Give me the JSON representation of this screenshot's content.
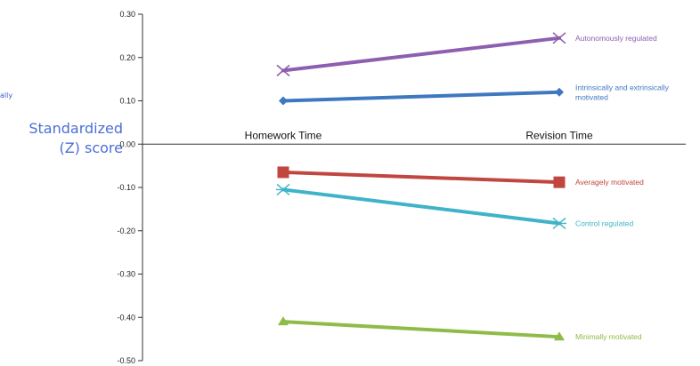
{
  "chart_data": {
    "type": "line",
    "categories": [
      "Homework Time",
      "Revision Time"
    ],
    "ylabel_lines": [
      "Standardized",
      "(Z) score"
    ],
    "yticks": [
      "0.30",
      "0.20",
      "0.10",
      "0.00",
      "-0.10",
      "-0.20",
      "-0.30",
      "-0.40",
      "-0.50"
    ],
    "ylim": [
      -0.5,
      0.3
    ],
    "grid": false,
    "series": [
      {
        "name": "Autonomously regulated",
        "label_lines": [
          "Autonomously regulated"
        ],
        "values": [
          0.17,
          0.245
        ],
        "color": "#8e5fb0",
        "marker": "x"
      },
      {
        "name": "Intrinsically and extrinsically motivated",
        "label_lines": [
          "Intrinsically and extrinsically",
          "motivated"
        ],
        "values": [
          0.1,
          0.12
        ],
        "color": "#3f78c0",
        "marker": "diamond"
      },
      {
        "name": "Averagely motivated",
        "label_lines": [
          "Averagely motivated"
        ],
        "values": [
          -0.065,
          -0.088
        ],
        "color": "#c0463f",
        "marker": "square"
      },
      {
        "name": "Control regulated",
        "label_lines": [
          "Control regulated"
        ],
        "values": [
          -0.105,
          -0.183
        ],
        "color": "#3fb3c8",
        "marker": "asterisk"
      },
      {
        "name": "Minimally motivated",
        "label_lines": [
          "Minimally motivated"
        ],
        "values": [
          -0.41,
          -0.445
        ],
        "color": "#8fbb48",
        "marker": "triangle"
      }
    ]
  },
  "left_fragment": {
    "text": "ally"
  }
}
